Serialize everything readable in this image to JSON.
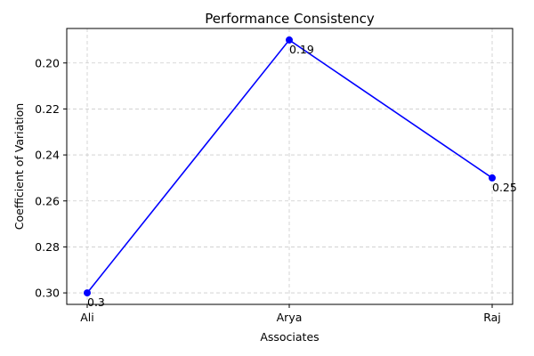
{
  "chart_data": {
    "type": "line",
    "title": "Performance Consistency",
    "xlabel": "Associates",
    "ylabel": "Coefficient of Variation",
    "categories": [
      "Ali",
      "Arya",
      "Raj"
    ],
    "series": [
      {
        "values": [
          0.3,
          0.19,
          0.25
        ],
        "data_labels": [
          "0.3",
          "0.19",
          "0.25"
        ],
        "color": "#0000ff",
        "marker": "circle"
      }
    ],
    "ylim": [
      0.305,
      0.185
    ],
    "y_inverted": true,
    "yticks": [
      0.2,
      0.22,
      0.24,
      0.26,
      0.28,
      0.3
    ],
    "ytick_labels": [
      "0.20",
      "0.22",
      "0.24",
      "0.26",
      "0.28",
      "0.30"
    ],
    "grid": true,
    "legend": "none"
  }
}
